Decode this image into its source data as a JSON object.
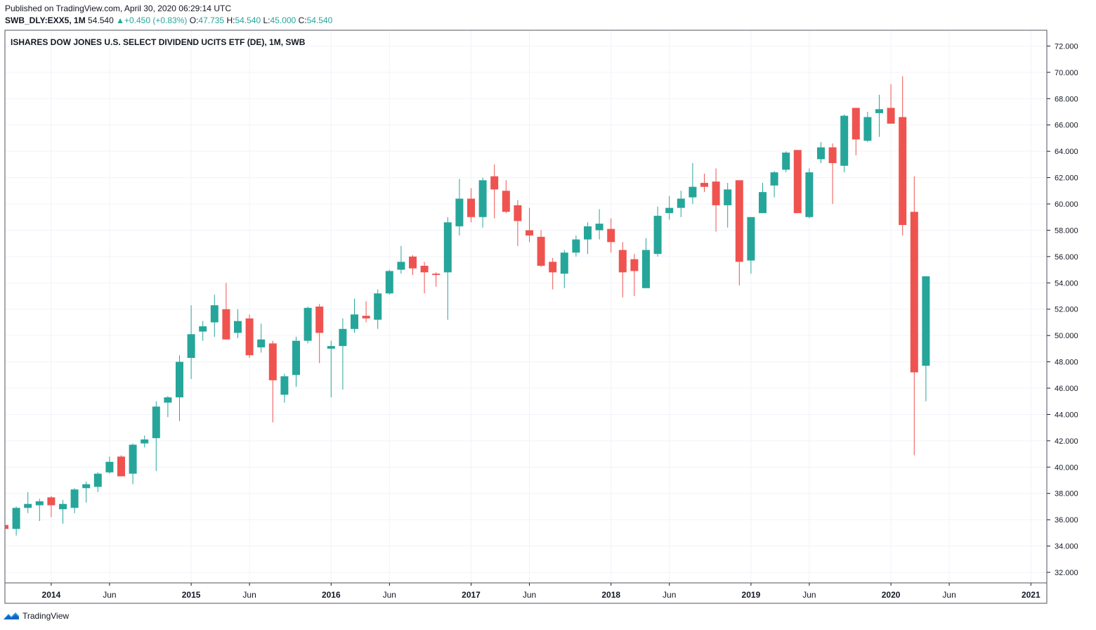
{
  "header": {
    "published": "Published on TradingView.com, April 30, 2020 06:29:14 UTC",
    "symbol": "SWB_DLY:EXX5, 1M",
    "last": "54.540",
    "change": "+0.450 (+0.83%)",
    "o_label": "O:",
    "o_value": "47.735",
    "h_label": "H:",
    "h_value": "54.540",
    "l_label": "L:",
    "l_value": "45.000",
    "c_label": "C:",
    "c_value": "54.540",
    "up_arrow": "▲"
  },
  "footer": {
    "brand": "TradingView",
    "logo_icon": "tradingview-logo-icon"
  },
  "colors": {
    "up": "#26a69a",
    "down": "#ef5350",
    "grid": "#f0f3fa",
    "axis": "#131722"
  },
  "chart_data": {
    "type": "candlestick",
    "title": "ISHARES DOW JONES U.S. SELECT DIVIDEND UCITS ETF (DE), 1M, SWB",
    "ylim": [
      31.2,
      73.2
    ],
    "yticks": [
      "32.000",
      "34.000",
      "36.000",
      "38.000",
      "40.000",
      "42.000",
      "44.000",
      "46.000",
      "48.000",
      "50.000",
      "52.000",
      "54.000",
      "56.000",
      "58.000",
      "60.000",
      "62.000",
      "64.000",
      "66.000",
      "68.000",
      "70.000",
      "72.000"
    ],
    "xticks": [
      {
        "label": "2014",
        "index": 4,
        "bold": true
      },
      {
        "label": "Jun",
        "index": 9,
        "bold": false
      },
      {
        "label": "2015",
        "index": 16,
        "bold": true
      },
      {
        "label": "Jun",
        "index": 21,
        "bold": false
      },
      {
        "label": "2016",
        "index": 28,
        "bold": true
      },
      {
        "label": "Jun",
        "index": 33,
        "bold": false
      },
      {
        "label": "2017",
        "index": 40,
        "bold": true
      },
      {
        "label": "Jun",
        "index": 45,
        "bold": false
      },
      {
        "label": "2018",
        "index": 52,
        "bold": true
      },
      {
        "label": "Jun",
        "index": 57,
        "bold": false
      },
      {
        "label": "2019",
        "index": 64,
        "bold": true
      },
      {
        "label": "Jun",
        "index": 69,
        "bold": false
      },
      {
        "label": "2020",
        "index": 76,
        "bold": true
      },
      {
        "label": "Jun",
        "index": 81,
        "bold": false
      },
      {
        "label": "2021",
        "index": 88,
        "bold": true
      }
    ],
    "candles": [
      {
        "o": 35.6,
        "h": 36.2,
        "l": 35.0,
        "c": 35.3
      },
      {
        "o": 35.3,
        "h": 37.0,
        "l": 34.8,
        "c": 36.9
      },
      {
        "o": 36.9,
        "h": 38.1,
        "l": 36.5,
        "c": 37.2
      },
      {
        "o": 37.1,
        "h": 37.6,
        "l": 35.9,
        "c": 37.4
      },
      {
        "o": 37.7,
        "h": 37.8,
        "l": 36.2,
        "c": 37.1
      },
      {
        "o": 36.8,
        "h": 37.5,
        "l": 35.7,
        "c": 37.2
      },
      {
        "o": 36.9,
        "h": 38.4,
        "l": 36.5,
        "c": 38.3
      },
      {
        "o": 38.4,
        "h": 38.9,
        "l": 37.3,
        "c": 38.7
      },
      {
        "o": 38.5,
        "h": 39.6,
        "l": 38.1,
        "c": 39.5
      },
      {
        "o": 39.6,
        "h": 40.8,
        "l": 39.5,
        "c": 40.4
      },
      {
        "o": 40.8,
        "h": 40.9,
        "l": 39.3,
        "c": 39.3
      },
      {
        "o": 39.5,
        "h": 41.8,
        "l": 38.7,
        "c": 41.7
      },
      {
        "o": 41.8,
        "h": 42.4,
        "l": 41.5,
        "c": 42.1
      },
      {
        "o": 42.2,
        "h": 45.0,
        "l": 39.7,
        "c": 44.6
      },
      {
        "o": 44.9,
        "h": 45.4,
        "l": 43.8,
        "c": 45.3
      },
      {
        "o": 45.3,
        "h": 48.5,
        "l": 43.5,
        "c": 48.0
      },
      {
        "o": 48.3,
        "h": 52.3,
        "l": 46.7,
        "c": 50.1
      },
      {
        "o": 50.3,
        "h": 51.1,
        "l": 49.6,
        "c": 50.7
      },
      {
        "o": 51.0,
        "h": 53.1,
        "l": 49.9,
        "c": 52.3
      },
      {
        "o": 52.0,
        "h": 54.0,
        "l": 49.7,
        "c": 49.7
      },
      {
        "o": 50.2,
        "h": 52.0,
        "l": 49.8,
        "c": 51.1
      },
      {
        "o": 51.3,
        "h": 51.6,
        "l": 48.3,
        "c": 48.5
      },
      {
        "o": 49.1,
        "h": 50.9,
        "l": 48.7,
        "c": 49.7
      },
      {
        "o": 49.4,
        "h": 49.6,
        "l": 43.4,
        "c": 46.6
      },
      {
        "o": 45.5,
        "h": 47.1,
        "l": 44.9,
        "c": 46.9
      },
      {
        "o": 47.0,
        "h": 49.9,
        "l": 46.1,
        "c": 49.6
      },
      {
        "o": 49.6,
        "h": 52.2,
        "l": 49.4,
        "c": 52.1
      },
      {
        "o": 52.2,
        "h": 52.4,
        "l": 47.9,
        "c": 50.2
      },
      {
        "o": 49.0,
        "h": 49.6,
        "l": 45.3,
        "c": 49.2
      },
      {
        "o": 49.2,
        "h": 51.3,
        "l": 45.9,
        "c": 50.5
      },
      {
        "o": 50.5,
        "h": 52.8,
        "l": 50.2,
        "c": 51.6
      },
      {
        "o": 51.5,
        "h": 52.6,
        "l": 51.0,
        "c": 51.3
      },
      {
        "o": 51.2,
        "h": 53.5,
        "l": 50.5,
        "c": 53.2
      },
      {
        "o": 53.2,
        "h": 55.0,
        "l": 53.1,
        "c": 54.9
      },
      {
        "o": 55.0,
        "h": 56.8,
        "l": 54.7,
        "c": 55.6
      },
      {
        "o": 56.0,
        "h": 56.1,
        "l": 54.6,
        "c": 55.1
      },
      {
        "o": 55.3,
        "h": 55.6,
        "l": 53.2,
        "c": 54.8
      },
      {
        "o": 54.7,
        "h": 54.8,
        "l": 53.7,
        "c": 54.6
      },
      {
        "o": 54.8,
        "h": 59.0,
        "l": 51.2,
        "c": 58.6
      },
      {
        "o": 58.3,
        "h": 61.9,
        "l": 57.6,
        "c": 60.4
      },
      {
        "o": 60.4,
        "h": 61.2,
        "l": 58.6,
        "c": 59.0
      },
      {
        "o": 59.0,
        "h": 62.0,
        "l": 58.2,
        "c": 61.8
      },
      {
        "o": 62.1,
        "h": 63.0,
        "l": 58.9,
        "c": 61.1
      },
      {
        "o": 61.0,
        "h": 61.8,
        "l": 59.3,
        "c": 59.4
      },
      {
        "o": 59.9,
        "h": 60.3,
        "l": 56.8,
        "c": 58.7
      },
      {
        "o": 58.0,
        "h": 59.7,
        "l": 57.1,
        "c": 57.6
      },
      {
        "o": 57.5,
        "h": 58.0,
        "l": 55.2,
        "c": 55.3
      },
      {
        "o": 55.6,
        "h": 55.9,
        "l": 53.5,
        "c": 54.8
      },
      {
        "o": 54.7,
        "h": 56.5,
        "l": 53.6,
        "c": 56.3
      },
      {
        "o": 56.3,
        "h": 57.6,
        "l": 56.0,
        "c": 57.3
      },
      {
        "o": 57.3,
        "h": 58.6,
        "l": 56.2,
        "c": 58.3
      },
      {
        "o": 58.0,
        "h": 59.6,
        "l": 57.3,
        "c": 58.5
      },
      {
        "o": 58.1,
        "h": 58.9,
        "l": 56.3,
        "c": 57.1
      },
      {
        "o": 56.5,
        "h": 57.1,
        "l": 52.9,
        "c": 54.8
      },
      {
        "o": 55.8,
        "h": 56.2,
        "l": 53.0,
        "c": 54.9
      },
      {
        "o": 53.6,
        "h": 57.4,
        "l": 53.6,
        "c": 56.5
      },
      {
        "o": 56.2,
        "h": 59.8,
        "l": 56.0,
        "c": 59.1
      },
      {
        "o": 59.3,
        "h": 60.6,
        "l": 58.8,
        "c": 59.7
      },
      {
        "o": 59.7,
        "h": 61.0,
        "l": 59.0,
        "c": 60.4
      },
      {
        "o": 60.5,
        "h": 63.1,
        "l": 60.0,
        "c": 61.3
      },
      {
        "o": 61.6,
        "h": 62.3,
        "l": 60.9,
        "c": 61.3
      },
      {
        "o": 61.7,
        "h": 62.7,
        "l": 57.9,
        "c": 59.9
      },
      {
        "o": 59.9,
        "h": 61.6,
        "l": 58.2,
        "c": 61.1
      },
      {
        "o": 61.8,
        "h": 61.8,
        "l": 53.8,
        "c": 55.6
      },
      {
        "o": 55.7,
        "h": 58.9,
        "l": 54.7,
        "c": 59.0
      },
      {
        "o": 59.3,
        "h": 61.6,
        "l": 59.3,
        "c": 60.9
      },
      {
        "o": 61.4,
        "h": 62.5,
        "l": 60.5,
        "c": 62.4
      },
      {
        "o": 62.6,
        "h": 64.0,
        "l": 62.4,
        "c": 63.9
      },
      {
        "o": 64.1,
        "h": 64.1,
        "l": 59.3,
        "c": 59.3
      },
      {
        "o": 59.0,
        "h": 62.7,
        "l": 58.9,
        "c": 62.4
      },
      {
        "o": 63.4,
        "h": 64.7,
        "l": 63.1,
        "c": 64.3
      },
      {
        "o": 64.3,
        "h": 64.6,
        "l": 60.0,
        "c": 63.1
      },
      {
        "o": 62.9,
        "h": 66.8,
        "l": 62.4,
        "c": 66.7
      },
      {
        "o": 67.3,
        "h": 67.3,
        "l": 63.7,
        "c": 64.9
      },
      {
        "o": 64.8,
        "h": 67.0,
        "l": 64.7,
        "c": 66.6
      },
      {
        "o": 66.9,
        "h": 68.3,
        "l": 65.1,
        "c": 67.2
      },
      {
        "o": 67.3,
        "h": 69.1,
        "l": 66.1,
        "c": 66.1
      },
      {
        "o": 66.6,
        "h": 69.7,
        "l": 57.6,
        "c": 58.4
      },
      {
        "o": 59.4,
        "h": 62.1,
        "l": 40.9,
        "c": 47.2
      },
      {
        "o": 47.7,
        "h": 54.5,
        "l": 45.0,
        "c": 54.5
      }
    ]
  }
}
